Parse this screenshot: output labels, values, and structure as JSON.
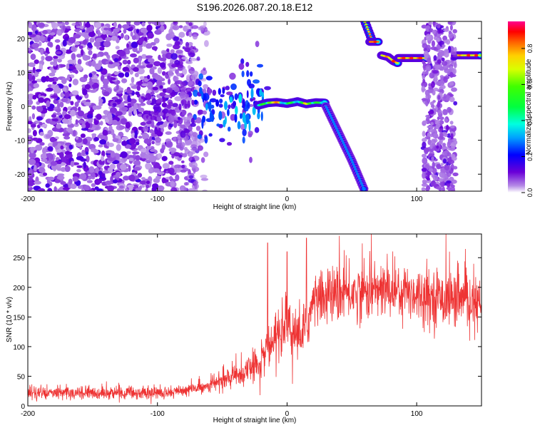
{
  "title": "S196.2026.087.20.18.E12",
  "chart_data": [
    {
      "type": "heatmap",
      "name": "spectrogram",
      "xlabel": "Height of straight line (km)",
      "ylabel": "Frequency (Hz)",
      "xlim": [
        -200,
        150
      ],
      "ylim": [
        -25,
        25
      ],
      "xticks": [
        -200,
        -100,
        0,
        100
      ],
      "yticks": [
        -20,
        -10,
        0,
        10,
        20
      ],
      "colorbar": {
        "label": "Normalized spectral amplitude",
        "range": [
          0,
          0.95
        ],
        "ticks": [
          0.0,
          0.2,
          0.4,
          0.6,
          0.8
        ],
        "tick_labels": [
          "0.0",
          "0.2",
          "0.4",
          "0.6",
          "0.8"
        ]
      },
      "features": [
        {
          "name": "noise-region",
          "x_range": [
            -200,
            -70
          ],
          "y_range": [
            -25,
            25
          ],
          "amplitude": 0.12
        },
        {
          "name": "fragmented-echo",
          "x_range": [
            -70,
            -20
          ],
          "y_center": [
            -3,
            2
          ],
          "amplitude": 0.25
        },
        {
          "name": "main-echo-ridge",
          "x": [
            -20,
            -10,
            0,
            10,
            20,
            30
          ],
          "y": [
            1,
            1,
            1,
            1,
            1,
            1
          ],
          "amplitude": 0.8
        },
        {
          "name": "descending-trail",
          "x": [
            30,
            40,
            50,
            60
          ],
          "y": [
            0,
            -8,
            -16,
            -25
          ],
          "amplitude": 0.3
        },
        {
          "name": "upper-trail-segments",
          "x": [
            60,
            65,
            70,
            75,
            80,
            90,
            100,
            130,
            150
          ],
          "y": [
            24,
            19,
            19,
            15,
            13,
            14,
            14,
            15,
            15
          ],
          "amplitude": 0.7
        },
        {
          "name": "vertical-noise-column",
          "x_range": [
            105,
            130
          ],
          "y_range": [
            -25,
            25
          ],
          "amplitude": 0.15
        }
      ]
    },
    {
      "type": "line",
      "name": "snr",
      "xlabel": "Height of straight line (km)",
      "ylabel": "SNR (10 * v/v)",
      "xlim": [
        -200,
        150
      ],
      "ylim": [
        0,
        290
      ],
      "xticks": [
        -200,
        -100,
        0,
        100
      ],
      "yticks": [
        0,
        50,
        100,
        150,
        200,
        250
      ],
      "color": "#ee3333",
      "series_envelope": {
        "x": [
          -200,
          -150,
          -100,
          -80,
          -60,
          -40,
          -30,
          -20,
          -15,
          -10,
          -5,
          0,
          5,
          10,
          15,
          20,
          30,
          50,
          70,
          90,
          110,
          130,
          150
        ],
        "y": [
          22,
          22,
          22,
          25,
          35,
          50,
          60,
          75,
          95,
          110,
          120,
          135,
          125,
          115,
          135,
          175,
          185,
          190,
          195,
          195,
          185,
          180,
          170
        ]
      },
      "spikes": [
        {
          "x": -15,
          "y": 275
        },
        {
          "x": 0,
          "y": 260
        },
        {
          "x": 15,
          "y": 283
        },
        {
          "x": 65,
          "y": 290
        }
      ]
    }
  ]
}
